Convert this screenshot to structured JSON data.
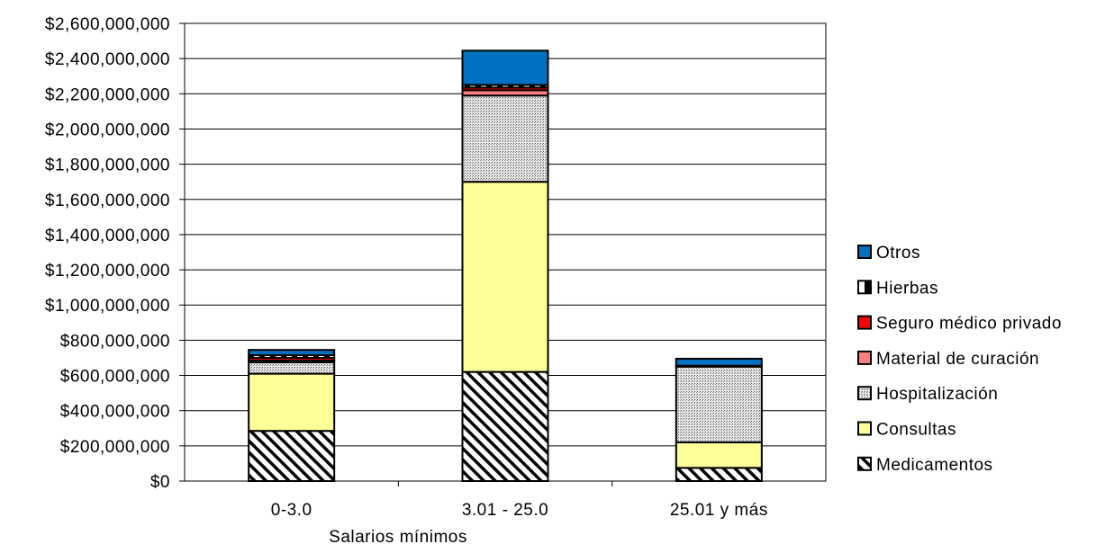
{
  "chart_data": {
    "type": "bar",
    "stacked": true,
    "title": "",
    "xlabel": "Salarios mínimos",
    "ylabel": "",
    "ylim": [
      0,
      2600000000
    ],
    "ytick_step": 200000000,
    "grid": true,
    "legend_position": "right",
    "categories": [
      "0-3.0",
      "3.01 - 25.0",
      "25.01 y más"
    ],
    "y_tick_labels": [
      "$0",
      "$200,000,000",
      "$400,000,000",
      "$600,000,000",
      "$800,000,000",
      "$1,000,000,000",
      "$1,200,000,000",
      "$1,400,000,000",
      "$1,600,000,000",
      "$1,800,000,000",
      "$2,000,000,000",
      "$2,200,000,000",
      "$2,400,000,000",
      "$2,600,000,000"
    ],
    "series": [
      {
        "name": "Medicamentos",
        "fill": "hatch",
        "color": "#ffffff",
        "values": [
          285000000,
          620000000,
          75000000
        ]
      },
      {
        "name": "Consultas",
        "fill": "solid",
        "color": "#ffff99",
        "values": [
          325000000,
          1080000000,
          145000000
        ]
      },
      {
        "name": "Hospitalización",
        "fill": "dots",
        "color": "#c0c0c0",
        "values": [
          65000000,
          490000000,
          430000000
        ]
      },
      {
        "name": "Material de curación",
        "fill": "solid",
        "color": "#ff8080",
        "values": [
          10000000,
          30000000,
          3000000
        ]
      },
      {
        "name": "Seguro médico privado",
        "fill": "solid",
        "color": "#ff0000",
        "values": [
          15000000,
          15000000,
          2000000
        ]
      },
      {
        "name": "Hierbas",
        "fill": "half",
        "color": "#000000",
        "values": [
          15000000,
          15000000,
          0
        ]
      },
      {
        "name": "Otros",
        "fill": "solid",
        "color": "#0070c0",
        "values": [
          30000000,
          195000000,
          40000000
        ]
      }
    ]
  }
}
